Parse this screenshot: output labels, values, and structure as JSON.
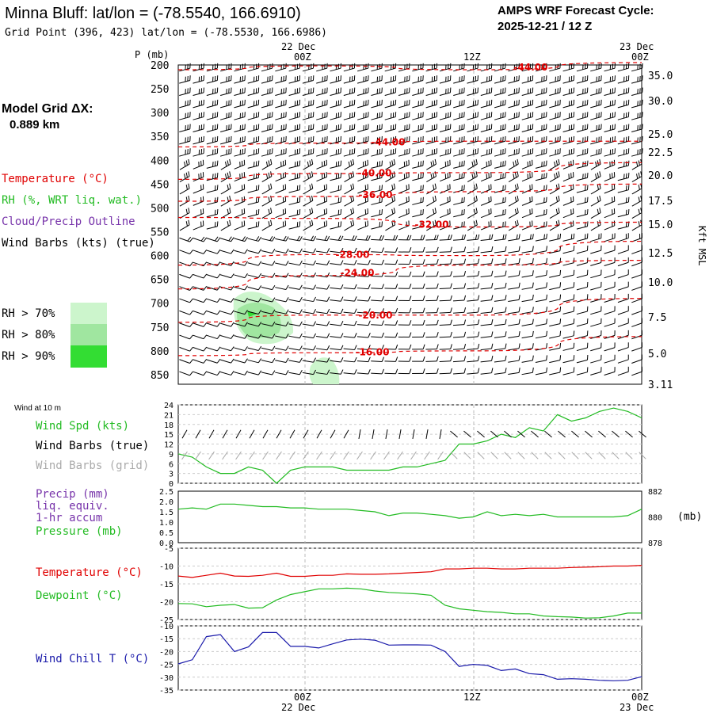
{
  "header": {
    "title": "Minna Bluff:  lat/lon = (-78.5540, 166.6910)",
    "grid_point": "Grid Point (396, 423) lat/lon = (-78.5530, 166.6986)",
    "cycle_title": "AMPS WRF Forecast Cycle:",
    "cycle_value": "2025-12-21 / 12  Z"
  },
  "side": {
    "grid_label": "Model Grid ΔX:",
    "grid_value": "0.889 km",
    "temp_label": "Temperature (°C)",
    "rh_label": "RH (%, WRT liq. wat.)",
    "cloud_label": "Cloud/Precip Outline",
    "wind_label": "Wind Barbs (kts) (true)",
    "rh70": "RH > 70%",
    "rh80": "RH > 80%",
    "rh90": "RH > 90%",
    "kft_label": "Kft MSL",
    "wind10_label": "Wind at 10 m",
    "spd_label": "Wind Spd (kts)",
    "barbs_true_label": "Wind Barbs (true)",
    "barbs_grid_label": "Wind Barbs (grid)",
    "precip_label": "Precip (mm)",
    "precip_label2": "liq. equiv.",
    "precip_label3": "1-hr accum",
    "pressure_label": "Pressure (mb)",
    "mb_unit": "(mb)",
    "t_label": "Temperature (°C)",
    "td_label": "Dewpoint (°C)",
    "wc_label": "Wind Chill T (°C)"
  },
  "colors": {
    "temp": "#e00000",
    "dew": "#22bb22",
    "precip": "#7733aa",
    "wind_chill": "#1a1aaa",
    "grid_barb": "#aaaaaa",
    "rh70": "#ccf5cc",
    "rh80": "#a0e6a0",
    "rh90": "#33dd33"
  },
  "chart_data": [
    {
      "type": "heatmap",
      "name": "time-height cross section",
      "ylabel": "P (mb)",
      "ylim": [
        870,
        200
      ],
      "pressure_ticks": [
        "200",
        "250",
        "300",
        "350",
        "400",
        "450",
        "500",
        "550",
        "600",
        "650",
        "700",
        "750",
        "800",
        "850"
      ],
      "kft_ticks": [
        "35.0",
        "30.0",
        "25.0",
        "22.5",
        "20.0",
        "17.5",
        "15.0",
        "12.5",
        "10.0",
        "7.5",
        "5.0",
        "3.11"
      ],
      "top_time_labels": [
        "22 Dec",
        "00Z",
        "12Z",
        "23 Dec",
        "00Z"
      ],
      "isotherms": [
        {
          "label": "-44.00",
          "p": [
            210,
            202,
            210,
            195
          ]
        },
        {
          "label": "-44.00",
          "p": [
            372,
            364,
            360,
            360
          ]
        },
        {
          "label": "-40.00",
          "p": [
            440,
            428,
            426,
            405
          ]
        },
        {
          "label": "-36.00",
          "p": [
            486,
            476,
            466,
            450
          ]
        },
        {
          "label": "-32.00",
          "p": [
            520,
            522,
            540,
            530
          ]
        },
        {
          "label": "-28.00",
          "p": [
            620,
            598,
            600,
            570
          ]
        },
        {
          "label": "-24.00",
          "p": [
            670,
            642,
            620,
            610
          ]
        },
        {
          "label": "-20.00",
          "p": [
            740,
            725,
            725,
            690
          ]
        },
        {
          "label": "-16.00",
          "p": [
            810,
            804,
            800,
            770
          ]
        }
      ]
    },
    {
      "type": "line",
      "name": "wind speed",
      "ylim": [
        0,
        24
      ],
      "yticks": [
        "0",
        "3",
        "6",
        "9",
        "12",
        "15",
        "18",
        "21",
        "24"
      ],
      "series": [
        {
          "name": "Wind Spd (kts)",
          "values": [
            9,
            8,
            5,
            3,
            3,
            5,
            4,
            0,
            4,
            5,
            5,
            5,
            4,
            4,
            4,
            4,
            5,
            5,
            6,
            7,
            12,
            12,
            13,
            15,
            14,
            17,
            16,
            21,
            19,
            20,
            22,
            23,
            22,
            20
          ]
        }
      ]
    },
    {
      "type": "line",
      "name": "precip and pressure",
      "ylim": [
        0,
        2.5
      ],
      "yticks": [
        "0.0",
        "0.5",
        "1.0",
        "1.5",
        "2.0",
        "2.5"
      ],
      "right_ylim": [
        878,
        882
      ],
      "right_yticks": [
        "882",
        "880",
        "878"
      ],
      "series": [
        {
          "name": "Pressure (mb)",
          "values": [
            880.6,
            880.7,
            880.6,
            881.0,
            881.0,
            880.9,
            880.8,
            880.8,
            880.7,
            880.7,
            880.6,
            880.6,
            880.6,
            880.5,
            880.4,
            880.1,
            880.3,
            880.3,
            880.2,
            880.1,
            879.9,
            880.0,
            880.4,
            880.1,
            880.2,
            880.1,
            880.2,
            880.0,
            880.0,
            880.0,
            880.0,
            880.0,
            880.1,
            880.6
          ]
        }
      ]
    },
    {
      "type": "line",
      "name": "temperature and dewpoint",
      "ylim": [
        -25,
        -5
      ],
      "yticks": [
        "-5",
        "-10",
        "-15",
        "-20",
        "-25"
      ],
      "series": [
        {
          "name": "Temperature (°C)",
          "values": [
            -12.8,
            -13.2,
            -12.6,
            -12.0,
            -12.8,
            -12.9,
            -12.6,
            -12.0,
            -12.9,
            -12.9,
            -12.6,
            -12.6,
            -12.2,
            -12.3,
            -12.3,
            -12.2,
            -12.0,
            -11.8,
            -11.6,
            -10.8,
            -10.8,
            -10.6,
            -10.6,
            -10.8,
            -10.8,
            -10.6,
            -10.6,
            -10.6,
            -10.4,
            -10.3,
            -10.2,
            -10.0,
            -10.0,
            -9.8
          ]
        },
        {
          "name": "Dewpoint (°C)",
          "values": [
            -20.5,
            -20.6,
            -21.4,
            -21.0,
            -20.8,
            -21.8,
            -21.7,
            -19.5,
            -18.0,
            -17.2,
            -16.4,
            -16.4,
            -16.2,
            -16.4,
            -17.0,
            -17.4,
            -17.6,
            -17.8,
            -18.2,
            -21.0,
            -22.0,
            -22.4,
            -22.8,
            -23.0,
            -23.4,
            -23.4,
            -24.0,
            -24.2,
            -24.3,
            -24.6,
            -24.5,
            -24.0,
            -23.2,
            -23.2
          ]
        }
      ]
    },
    {
      "type": "line",
      "name": "wind chill",
      "ylim": [
        -35,
        -10
      ],
      "yticks": [
        "-10",
        "-15",
        "-20",
        "-25",
        "-30",
        "-35"
      ],
      "series": [
        {
          "name": "Wind Chill T (°C)",
          "values": [
            -24.8,
            -23.2,
            -14.2,
            -13.4,
            -20.0,
            -18.2,
            -12.6,
            -12.6,
            -18.0,
            -18.0,
            -18.6,
            -17.0,
            -15.5,
            -15.2,
            -15.6,
            -17.5,
            -17.4,
            -17.4,
            -17.5,
            -20.0,
            -25.8,
            -25.0,
            -25.4,
            -27.4,
            -26.8,
            -28.6,
            -29.0,
            -30.8,
            -30.6,
            -30.8,
            -31.2,
            -31.4,
            -31.2,
            -29.8
          ]
        }
      ]
    }
  ],
  "bottom_time": {
    "z00": "00Z",
    "z12": "12Z",
    "z00b": "00Z",
    "d22": "22 Dec",
    "d23": "23 Dec"
  }
}
